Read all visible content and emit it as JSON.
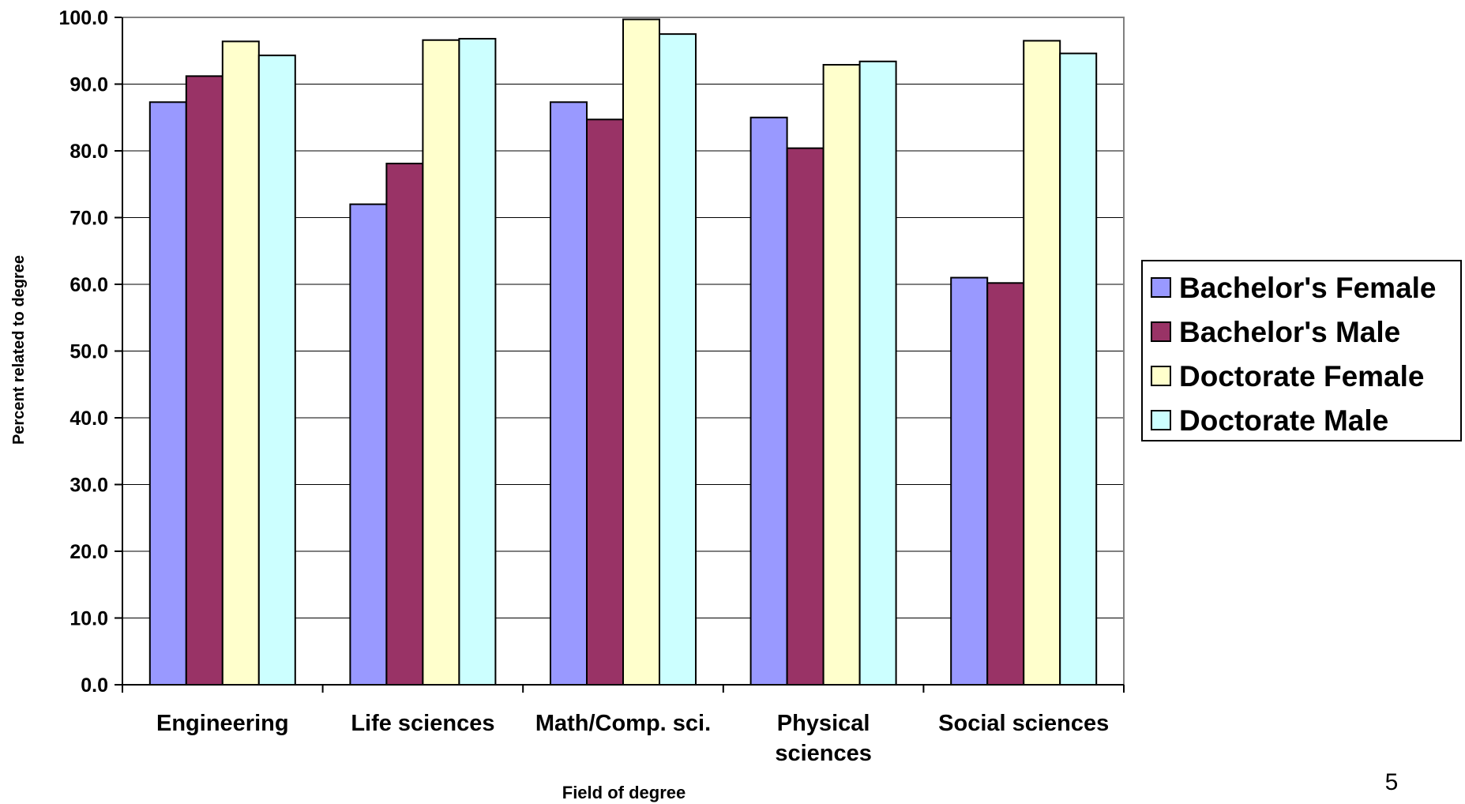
{
  "slide": {
    "page_number": "5"
  },
  "chart_data": {
    "type": "bar",
    "xlabel": "Field of degree",
    "ylabel": "Percent related to degree",
    "ylim": [
      0,
      100
    ],
    "yticks": [
      "0.0",
      "10.0",
      "20.0",
      "30.0",
      "40.0",
      "50.0",
      "60.0",
      "70.0",
      "80.0",
      "90.0",
      "100.0"
    ],
    "grid": true,
    "legend_position": "right",
    "categories": [
      [
        "Engineering"
      ],
      [
        "Life sciences"
      ],
      [
        "Math/Comp. sci."
      ],
      [
        "Physical",
        "sciences"
      ],
      [
        "Social sciences"
      ]
    ],
    "series": [
      {
        "name": "Bachelor's Female",
        "color": "#9999ff",
        "values": [
          87.3,
          72.0,
          87.3,
          85.0,
          61.0
        ]
      },
      {
        "name": "Bachelor's Male",
        "color": "#993366",
        "values": [
          91.2,
          78.1,
          84.7,
          80.4,
          60.2
        ]
      },
      {
        "name": "Doctorate Female",
        "color": "#ffffcc",
        "values": [
          96.4,
          96.6,
          99.7,
          92.9,
          96.5
        ]
      },
      {
        "name": "Doctorate Male",
        "color": "#ccffff",
        "values": [
          94.3,
          96.8,
          97.5,
          93.4,
          94.6
        ]
      }
    ]
  }
}
